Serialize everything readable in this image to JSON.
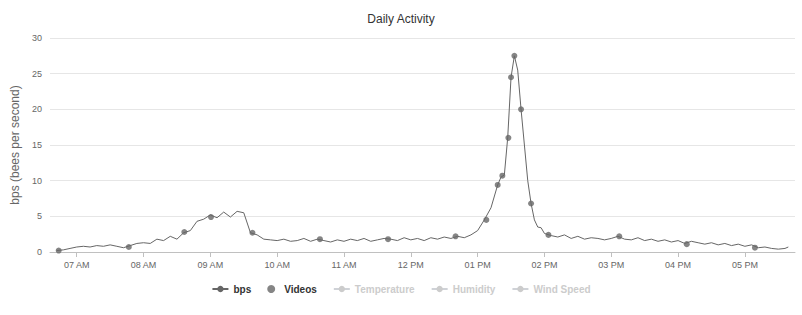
{
  "chart_data": {
    "type": "line",
    "title": "Daily Activity",
    "y_label": "bps (bees per second)",
    "xlim": [
      6.6,
      17.75
    ],
    "xticks": [
      {
        "value": 7,
        "label": "07 AM"
      },
      {
        "value": 8,
        "label": "08 AM"
      },
      {
        "value": 9,
        "label": "09 AM"
      },
      {
        "value": 10,
        "label": "10 AM"
      },
      {
        "value": 11,
        "label": "11 AM"
      },
      {
        "value": 12,
        "label": "12 PM"
      },
      {
        "value": 13,
        "label": "01 PM"
      },
      {
        "value": 14,
        "label": "02 PM"
      },
      {
        "value": 15,
        "label": "03 PM"
      },
      {
        "value": 16,
        "label": "04 PM"
      },
      {
        "value": 17,
        "label": "05 PM"
      }
    ],
    "ylim": [
      0,
      30
    ],
    "yticks": [
      0,
      5,
      10,
      15,
      20,
      25,
      30
    ],
    "grid": true,
    "legend": "bottom",
    "series": [
      {
        "name": "bps",
        "type": "line",
        "color": "#666666",
        "marker": "none",
        "x": [
          6.7,
          6.8,
          6.9,
          7.0,
          7.1,
          7.2,
          7.3,
          7.4,
          7.5,
          7.6,
          7.7,
          7.8,
          7.9,
          8.0,
          8.1,
          8.2,
          8.3,
          8.4,
          8.5,
          8.6,
          8.7,
          8.8,
          8.9,
          9.0,
          9.1,
          9.2,
          9.3,
          9.4,
          9.5,
          9.6,
          9.7,
          9.8,
          9.9,
          10.0,
          10.1,
          10.2,
          10.3,
          10.4,
          10.5,
          10.6,
          10.7,
          10.8,
          10.9,
          11.0,
          11.1,
          11.2,
          11.3,
          11.4,
          11.5,
          11.6,
          11.7,
          11.8,
          11.9,
          12.0,
          12.1,
          12.2,
          12.3,
          12.4,
          12.5,
          12.6,
          12.7,
          12.8,
          12.9,
          13.0,
          13.1,
          13.2,
          13.3,
          13.35,
          13.4,
          13.45,
          13.5,
          13.55,
          13.6,
          13.65,
          13.7,
          13.75,
          13.8,
          13.85,
          13.9,
          13.95,
          14.0,
          14.1,
          14.2,
          14.3,
          14.4,
          14.5,
          14.6,
          14.7,
          14.8,
          14.9,
          15.0,
          15.1,
          15.2,
          15.3,
          15.4,
          15.5,
          15.6,
          15.7,
          15.8,
          15.9,
          16.0,
          16.1,
          16.2,
          16.3,
          16.4,
          16.5,
          16.6,
          16.7,
          16.8,
          16.9,
          17.0,
          17.1,
          17.2,
          17.3,
          17.4,
          17.5,
          17.6,
          17.65
        ],
        "values": [
          0.2,
          0.3,
          0.5,
          0.7,
          0.8,
          0.7,
          0.9,
          0.8,
          1.0,
          0.8,
          0.6,
          0.9,
          1.2,
          1.3,
          1.2,
          1.8,
          1.6,
          2.2,
          1.8,
          2.7,
          3.0,
          4.3,
          4.6,
          5.2,
          4.8,
          5.6,
          4.9,
          5.7,
          5.5,
          2.7,
          2.4,
          1.8,
          1.7,
          1.6,
          1.8,
          1.5,
          1.6,
          1.9,
          1.5,
          1.8,
          1.6,
          1.4,
          1.7,
          1.5,
          1.8,
          1.6,
          1.9,
          1.5,
          1.7,
          1.9,
          1.8,
          1.6,
          2.0,
          1.7,
          1.9,
          1.6,
          2.0,
          1.8,
          2.1,
          1.9,
          2.2,
          2.0,
          2.4,
          3.0,
          4.5,
          6.2,
          9.4,
          10.5,
          10.8,
          16.0,
          24.5,
          27.5,
          25.5,
          20.0,
          15.0,
          10.0,
          6.8,
          4.5,
          3.5,
          3.4,
          2.6,
          2.3,
          2.1,
          2.4,
          1.9,
          2.2,
          1.8,
          2.0,
          1.9,
          1.7,
          1.9,
          2.2,
          1.8,
          1.7,
          2.0,
          1.6,
          1.8,
          1.5,
          1.7,
          1.4,
          1.6,
          1.2,
          1.5,
          1.3,
          1.1,
          1.3,
          1.0,
          1.2,
          0.9,
          1.1,
          0.8,
          1.0,
          0.6,
          0.7,
          0.5,
          0.4,
          0.5,
          0.7
        ]
      },
      {
        "name": "Videos",
        "type": "scatter",
        "color": "#666666",
        "marker": "circle",
        "x": [
          6.73,
          7.78,
          8.61,
          9.01,
          9.63,
          10.64,
          11.66,
          12.67,
          13.13,
          13.3,
          13.37,
          13.46,
          13.5,
          13.55,
          13.65,
          13.8,
          14.06,
          15.12,
          16.13,
          17.15
        ],
        "values": [
          0.2,
          0.7,
          2.8,
          4.9,
          2.7,
          1.8,
          1.8,
          2.2,
          4.5,
          9.4,
          10.7,
          16.0,
          24.5,
          27.5,
          20.0,
          6.8,
          2.4,
          2.2,
          1.1,
          0.6
        ]
      },
      {
        "name": "Temperature",
        "type": "line",
        "x": [],
        "values": []
      },
      {
        "name": "Humidity",
        "type": "line",
        "x": [],
        "values": []
      },
      {
        "name": "Wind Speed",
        "type": "line",
        "x": [],
        "values": []
      }
    ]
  }
}
